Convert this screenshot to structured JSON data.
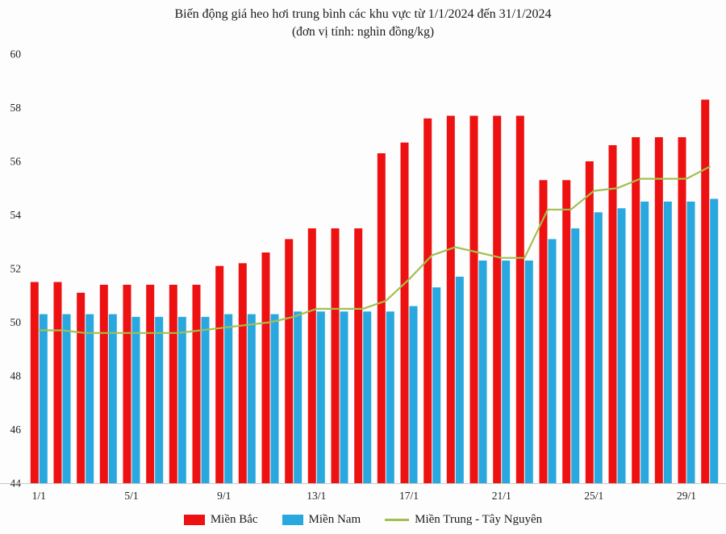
{
  "chart_data": {
    "type": "bar",
    "title": "Biến động giá heo hơi trung bình các khu vực từ 1/1/2024 đến 31/1/2024",
    "subtitle": "(đơn vị tính: nghìn đồng/kg)",
    "ylim": [
      44,
      60
    ],
    "y_ticks": [
      44,
      46,
      48,
      50,
      52,
      54,
      56,
      58,
      60
    ],
    "grid": false,
    "legend_position": "bottom",
    "categories": [
      "1/1",
      "2/1",
      "3/1",
      "4/1",
      "5/1",
      "6/1",
      "7/1",
      "8/1",
      "9/1",
      "10/1",
      "11/1",
      "12/1",
      "13/1",
      "14/1",
      "15/1",
      "16/1",
      "17/1",
      "18/1",
      "19/1",
      "20/1",
      "21/1",
      "22/1",
      "23/1",
      "24/1",
      "25/1",
      "26/1",
      "27/1",
      "28/1",
      "29/1",
      "30/1"
    ],
    "x_tick_labels": [
      "1/1",
      "5/1",
      "9/1",
      "13/1",
      "17/1",
      "21/1",
      "25/1",
      "29/1"
    ],
    "series": [
      {
        "name": "Miền Bắc",
        "type": "bar",
        "color": "#ed1111",
        "values": [
          51.5,
          51.5,
          51.1,
          51.4,
          51.4,
          51.4,
          51.4,
          51.4,
          52.1,
          52.2,
          52.6,
          53.1,
          53.5,
          53.5,
          53.5,
          56.3,
          56.7,
          57.6,
          57.7,
          57.7,
          57.7,
          57.7,
          55.3,
          55.3,
          56.0,
          56.6,
          56.9,
          56.9,
          56.9,
          58.3
        ]
      },
      {
        "name": "Miền Nam",
        "type": "bar",
        "color": "#29a8e0",
        "values": [
          50.3,
          50.3,
          50.3,
          50.3,
          50.2,
          50.2,
          50.2,
          50.2,
          50.3,
          50.3,
          50.3,
          50.4,
          50.4,
          50.4,
          50.4,
          50.4,
          50.6,
          51.3,
          51.7,
          52.3,
          52.3,
          52.3,
          53.1,
          53.5,
          54.1,
          54.25,
          54.5,
          54.5,
          54.5,
          54.6
        ]
      },
      {
        "name": "Miền Trung - Tây Nguyên",
        "type": "line",
        "color": "#a3bf4f",
        "values": [
          49.7,
          49.7,
          49.6,
          49.6,
          49.6,
          49.6,
          49.6,
          49.7,
          49.8,
          49.9,
          50.0,
          50.2,
          50.5,
          50.5,
          50.5,
          50.8,
          51.6,
          52.5,
          52.8,
          52.6,
          52.4,
          52.4,
          54.2,
          54.2,
          54.9,
          55.0,
          55.35,
          55.35,
          55.35,
          55.8
        ]
      }
    ]
  }
}
